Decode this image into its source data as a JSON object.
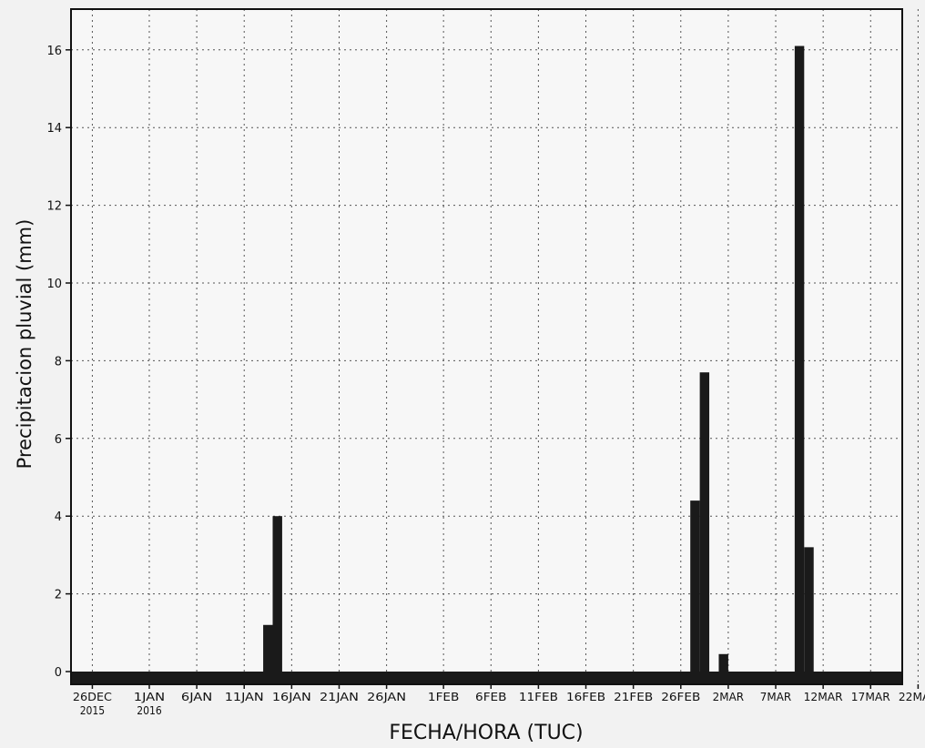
{
  "chart_data": {
    "type": "bar",
    "title": "",
    "xlabel": "FECHA/HORA (TUC)",
    "ylabel": "Precipitacion pluvial (mm)",
    "ylim": [
      0,
      16.7
    ],
    "yticks": [
      0,
      2,
      4,
      6,
      8,
      10,
      12,
      14,
      16
    ],
    "grid": true,
    "x_start": "2015-12-25",
    "x_ticks": [
      {
        "date": "2015-12-26",
        "label": "26DEC",
        "label2": "2015"
      },
      {
        "date": "2016-01-01",
        "label": "1JAN",
        "label2": "2016"
      },
      {
        "date": "2016-01-06",
        "label": "6JAN",
        "label2": ""
      },
      {
        "date": "2016-01-11",
        "label": "11JAN",
        "label2": ""
      },
      {
        "date": "2016-01-16",
        "label": "16JAN",
        "label2": ""
      },
      {
        "date": "2016-01-21",
        "label": "21JAN",
        "label2": ""
      },
      {
        "date": "2016-01-26",
        "label": "26JAN",
        "label2": ""
      },
      {
        "date": "2016-02-01",
        "label": "1FEB",
        "label2": ""
      },
      {
        "date": "2016-02-06",
        "label": "6FEB",
        "label2": ""
      },
      {
        "date": "2016-02-11",
        "label": "11FEB",
        "label2": ""
      },
      {
        "date": "2016-02-16",
        "label": "16FEB",
        "label2": ""
      },
      {
        "date": "2016-02-21",
        "label": "21FEB",
        "label2": ""
      },
      {
        "date": "2016-02-26",
        "label": "26FEB",
        "label2": ""
      },
      {
        "date": "2016-03-02",
        "label": "2MAR",
        "label2": ""
      },
      {
        "date": "2016-03-07",
        "label": "7MAR",
        "label2": ""
      },
      {
        "date": "2016-03-12",
        "label": "12MAR",
        "label2": ""
      },
      {
        "date": "2016-03-17",
        "label": "17MAR",
        "label2": ""
      },
      {
        "date": "2016-03-22",
        "label": "22MAR",
        "label2": ""
      }
    ],
    "series": [
      {
        "color": "#1a1a1a",
        "points": [
          {
            "start": "2016-01-13",
            "end": "2016-01-14",
            "value": 1.2
          },
          {
            "start": "2016-01-14",
            "end": "2016-01-15",
            "value": 4.0
          },
          {
            "start": "2016-02-27",
            "end": "2016-02-28",
            "value": 4.4
          },
          {
            "start": "2016-02-28",
            "end": "2016-02-29",
            "value": 7.7
          },
          {
            "start": "2016-03-01",
            "end": "2016-03-02",
            "value": 0.45
          },
          {
            "start": "2016-03-09",
            "end": "2016-03-10",
            "value": 16.1
          },
          {
            "start": "2016-03-10",
            "end": "2016-03-11",
            "value": 3.2
          }
        ]
      }
    ]
  }
}
